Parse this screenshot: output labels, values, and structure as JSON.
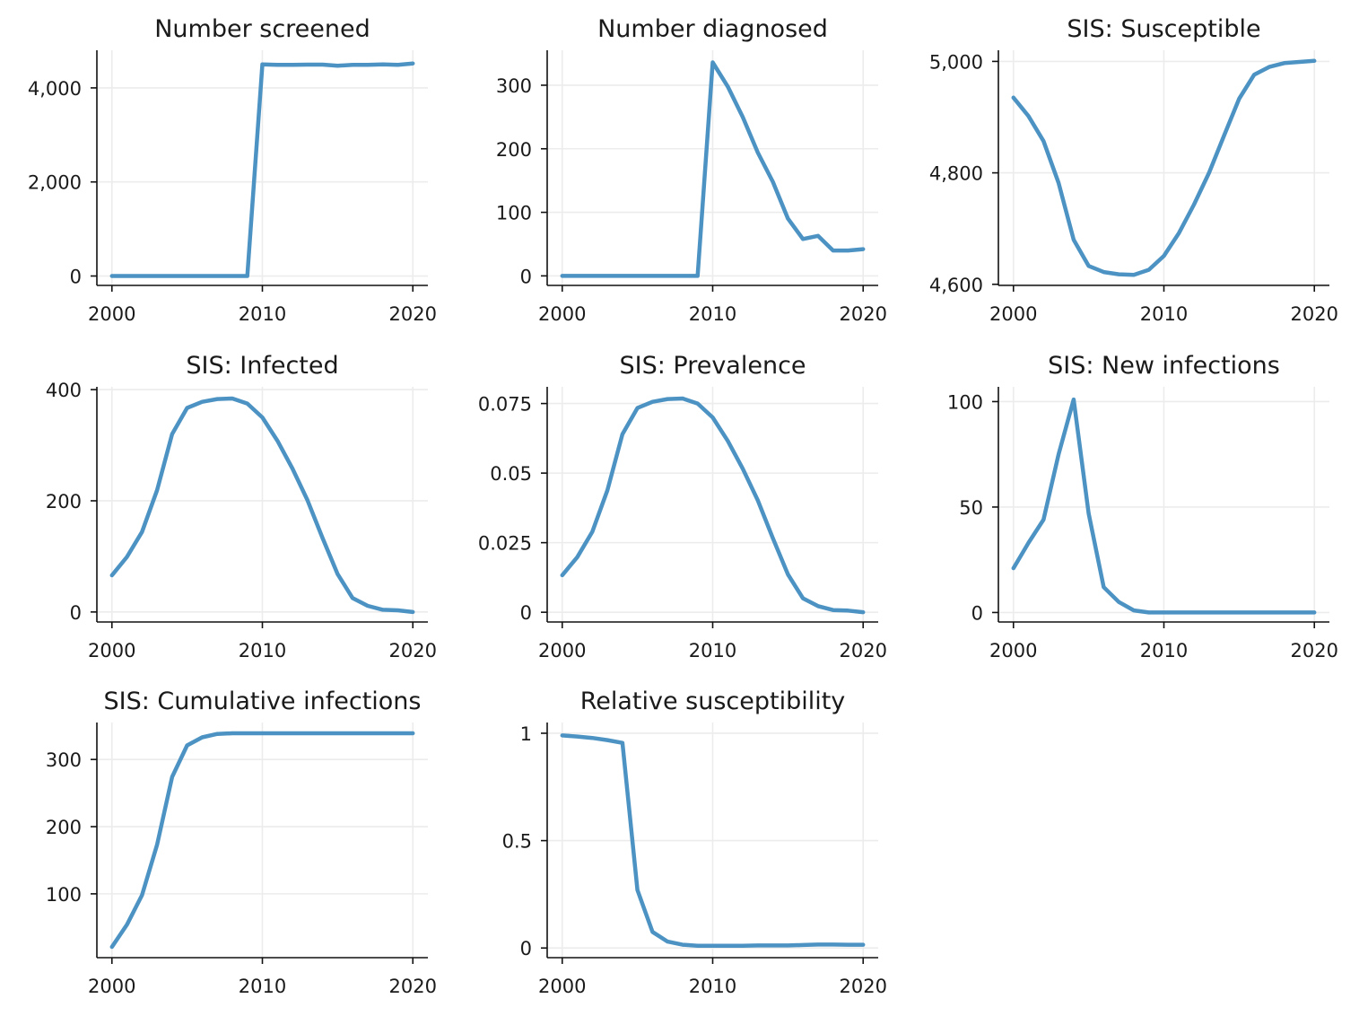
{
  "chart_data": [
    {
      "type": "line",
      "title": "Number screened",
      "xlim": [
        1999,
        2021
      ],
      "ylim": [
        -200,
        4800
      ],
      "xticks": [
        2000,
        2010,
        2020
      ],
      "xtick_labels": [
        "2000",
        "2010",
        "2020"
      ],
      "yticks": [
        0,
        2000,
        4000
      ],
      "ytick_labels": [
        "0",
        "2,000",
        "4,000"
      ],
      "x": [
        2000,
        2001,
        2002,
        2003,
        2004,
        2005,
        2006,
        2007,
        2008,
        2009,
        2010,
        2011,
        2012,
        2013,
        2014,
        2015,
        2016,
        2017,
        2018,
        2019,
        2020
      ],
      "values": [
        0,
        0,
        0,
        0,
        0,
        0,
        0,
        0,
        0,
        0,
        4500,
        4490,
        4490,
        4495,
        4495,
        4470,
        4490,
        4490,
        4500,
        4490,
        4520
      ],
      "color": "#4c93c3"
    },
    {
      "type": "line",
      "title": "Number diagnosed",
      "xlim": [
        1999,
        2021
      ],
      "ylim": [
        -15,
        355
      ],
      "xticks": [
        2000,
        2010,
        2020
      ],
      "xtick_labels": [
        "2000",
        "2010",
        "2020"
      ],
      "yticks": [
        0,
        100,
        200,
        300
      ],
      "ytick_labels": [
        "0",
        "100",
        "200",
        "300"
      ],
      "x": [
        2000,
        2001,
        2002,
        2003,
        2004,
        2005,
        2006,
        2007,
        2008,
        2009,
        2010,
        2011,
        2012,
        2013,
        2014,
        2015,
        2016,
        2017,
        2018,
        2019,
        2020
      ],
      "values": [
        0,
        0,
        0,
        0,
        0,
        0,
        0,
        0,
        0,
        0,
        336,
        298,
        250,
        194,
        148,
        90,
        58,
        63,
        40,
        40,
        42
      ],
      "color": "#4c93c3"
    },
    {
      "type": "line",
      "title": "SIS: Susceptible",
      "xlim": [
        1999,
        2021
      ],
      "ylim": [
        4598,
        5020
      ],
      "xticks": [
        2000,
        2010,
        2020
      ],
      "xtick_labels": [
        "2000",
        "2010",
        "2020"
      ],
      "yticks": [
        4600,
        4800,
        5000
      ],
      "ytick_labels": [
        "4,600",
        "4,800",
        "5,000"
      ],
      "x": [
        2000,
        2001,
        2002,
        2003,
        2004,
        2005,
        2006,
        2007,
        2008,
        2009,
        2010,
        2011,
        2012,
        2013,
        2014,
        2015,
        2016,
        2017,
        2018,
        2019,
        2020
      ],
      "values": [
        4935,
        4902,
        4857,
        4782,
        4680,
        4633,
        4622,
        4618,
        4617,
        4626,
        4651,
        4692,
        4743,
        4800,
        4867,
        4933,
        4976,
        4990,
        4997,
        4999,
        5001
      ],
      "color": "#4c93c3"
    },
    {
      "type": "line",
      "title": "SIS: Infected",
      "xlim": [
        1999,
        2021
      ],
      "ylim": [
        -18,
        405
      ],
      "xticks": [
        2000,
        2010,
        2020
      ],
      "xtick_labels": [
        "2000",
        "2010",
        "2020"
      ],
      "yticks": [
        0,
        200,
        400
      ],
      "ytick_labels": [
        "0",
        "200",
        "400"
      ],
      "x": [
        2000,
        2001,
        2002,
        2003,
        2004,
        2005,
        2006,
        2007,
        2008,
        2009,
        2010,
        2011,
        2012,
        2013,
        2014,
        2015,
        2016,
        2017,
        2018,
        2019,
        2020
      ],
      "values": [
        66,
        99,
        144,
        219,
        320,
        367,
        378,
        383,
        384,
        375,
        350,
        308,
        258,
        201,
        133,
        68,
        25,
        11,
        4,
        3,
        0
      ],
      "color": "#4c93c3"
    },
    {
      "type": "line",
      "title": "SIS: Prevalence",
      "xlim": [
        1999,
        2021
      ],
      "ylim": [
        -0.0035,
        0.081
      ],
      "xticks": [
        2000,
        2010,
        2020
      ],
      "xtick_labels": [
        "2000",
        "2010",
        "2020"
      ],
      "yticks": [
        0,
        0.025,
        0.05,
        0.075
      ],
      "ytick_labels": [
        "0",
        "0.025",
        "0.05",
        "0.075"
      ],
      "x": [
        2000,
        2001,
        2002,
        2003,
        2004,
        2005,
        2006,
        2007,
        2008,
        2009,
        2010,
        2011,
        2012,
        2013,
        2014,
        2015,
        2016,
        2017,
        2018,
        2019,
        2020
      ],
      "values": [
        0.0133,
        0.0198,
        0.0289,
        0.0438,
        0.064,
        0.0734,
        0.0756,
        0.0766,
        0.0768,
        0.075,
        0.07,
        0.0616,
        0.0516,
        0.0402,
        0.0266,
        0.0136,
        0.005,
        0.0022,
        0.0008,
        0.0006,
        0.0
      ],
      "color": "#4c93c3"
    },
    {
      "type": "line",
      "title": "SIS: New infections",
      "xlim": [
        1999,
        2021
      ],
      "ylim": [
        -4.5,
        107
      ],
      "xticks": [
        2000,
        2010,
        2020
      ],
      "xtick_labels": [
        "2000",
        "2010",
        "2020"
      ],
      "yticks": [
        0,
        50,
        100
      ],
      "ytick_labels": [
        "0",
        "50",
        "100"
      ],
      "x": [
        2000,
        2001,
        2002,
        2003,
        2004,
        2005,
        2006,
        2007,
        2008,
        2009,
        2010,
        2011,
        2012,
        2013,
        2014,
        2015,
        2016,
        2017,
        2018,
        2019,
        2020
      ],
      "values": [
        21,
        33,
        44,
        75,
        101,
        47,
        12,
        5,
        1,
        0,
        0,
        0,
        0,
        0,
        0,
        0,
        0,
        0,
        0,
        0,
        0
      ],
      "color": "#4c93c3"
    },
    {
      "type": "line",
      "title": "SIS: Cumulative infections",
      "xlim": [
        1999,
        2021
      ],
      "ylim": [
        5,
        355
      ],
      "xticks": [
        2000,
        2010,
        2020
      ],
      "xtick_labels": [
        "2000",
        "2010",
        "2020"
      ],
      "yticks": [
        100,
        200,
        300
      ],
      "ytick_labels": [
        "100",
        "200",
        "300"
      ],
      "x": [
        2000,
        2001,
        2002,
        2003,
        2004,
        2005,
        2006,
        2007,
        2008,
        2009,
        2010,
        2011,
        2012,
        2013,
        2014,
        2015,
        2016,
        2017,
        2018,
        2019,
        2020
      ],
      "values": [
        21,
        54,
        98,
        173,
        274,
        321,
        333,
        338,
        339,
        339,
        339,
        339,
        339,
        339,
        339,
        339,
        339,
        339,
        339,
        339,
        339
      ],
      "color": "#4c93c3"
    },
    {
      "type": "line",
      "title": "Relative susceptibility",
      "xlim": [
        1999,
        2021
      ],
      "ylim": [
        -0.045,
        1.05
      ],
      "xticks": [
        2000,
        2010,
        2020
      ],
      "xtick_labels": [
        "2000",
        "2010",
        "2020"
      ],
      "yticks": [
        0,
        0.5,
        1
      ],
      "ytick_labels": [
        "0",
        "0.5",
        "1"
      ],
      "x": [
        2000,
        2001,
        2002,
        2003,
        2004,
        2005,
        2006,
        2007,
        2008,
        2009,
        2010,
        2011,
        2012,
        2013,
        2014,
        2015,
        2016,
        2017,
        2018,
        2019,
        2020
      ],
      "values": [
        0.99,
        0.985,
        0.978,
        0.968,
        0.955,
        0.27,
        0.075,
        0.03,
        0.015,
        0.01,
        0.01,
        0.01,
        0.01,
        0.012,
        0.012,
        0.012,
        0.014,
        0.016,
        0.016,
        0.015,
        0.015
      ],
      "color": "#4c93c3"
    }
  ]
}
